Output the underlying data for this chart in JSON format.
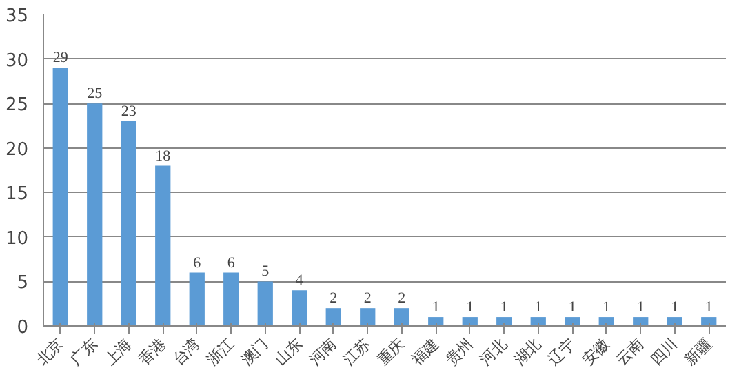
{
  "chart_data": {
    "type": "bar",
    "categories": [
      "北京",
      "广东",
      "上海",
      "香港",
      "台湾",
      "浙江",
      "澳门",
      "山东",
      "河南",
      "江苏",
      "重庆",
      "福建",
      "贵州",
      "河北",
      "湖北",
      "辽宁",
      "安徽",
      "云南",
      "四川",
      "新疆"
    ],
    "values": [
      29,
      25,
      23,
      18,
      6,
      6,
      5,
      4,
      2,
      2,
      2,
      1,
      1,
      1,
      1,
      1,
      1,
      1,
      1,
      1
    ],
    "color": "#5b9bd5",
    "ylim": [
      0,
      35
    ],
    "yticks": [
      0,
      5,
      10,
      15,
      20,
      25,
      30,
      35
    ],
    "grid": "y",
    "data_labels": true
  }
}
